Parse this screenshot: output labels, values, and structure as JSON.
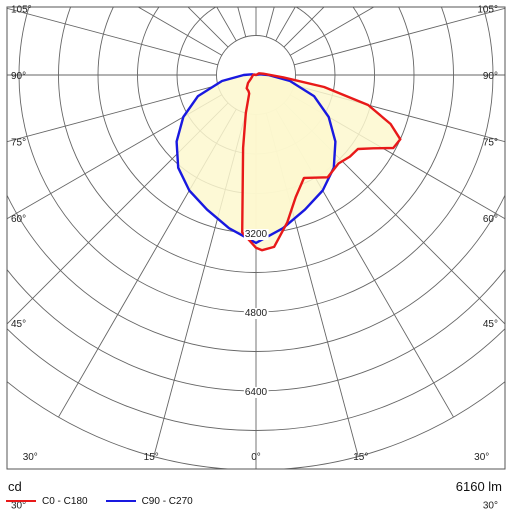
{
  "chart_data": {
    "type": "polar",
    "title": "",
    "unit_label": "cd",
    "flux_label": "6160 lm",
    "radial_ticks": [
      "3200",
      "4800",
      "6400"
    ],
    "radial_tick_values": [
      3200,
      4800,
      6400
    ],
    "radial_circles": [
      800,
      1600,
      2400,
      3200,
      4000,
      4800,
      5600,
      6400,
      7200,
      8000
    ],
    "radial_max": 8000,
    "angle_spokes": [
      0,
      15,
      30,
      45,
      60,
      75,
      90,
      105,
      120,
      135,
      150,
      165,
      180
    ],
    "angle_labels_right": [
      {
        "angle": 105,
        "text": "105°"
      },
      {
        "angle": 90,
        "text": "90°"
      },
      {
        "angle": 75,
        "text": "75°"
      },
      {
        "angle": 60,
        "text": "60°"
      },
      {
        "angle": 45,
        "text": "45°"
      },
      {
        "angle": 30,
        "text": "30°"
      }
    ],
    "angle_labels_left": [
      {
        "angle": 105,
        "text": "105°"
      },
      {
        "angle": 90,
        "text": "90°"
      },
      {
        "angle": 75,
        "text": "75°"
      },
      {
        "angle": 60,
        "text": "60°"
      },
      {
        "angle": 45,
        "text": "45°"
      },
      {
        "angle": 30,
        "text": "30°"
      }
    ],
    "angle_labels_bottom": [
      {
        "angle": 30,
        "side": "left",
        "text": "30°"
      },
      {
        "angle": 15,
        "side": "left",
        "text": "15°"
      },
      {
        "angle": 0,
        "side": "center",
        "text": "0°"
      },
      {
        "angle": 15,
        "side": "right",
        "text": "15°"
      },
      {
        "angle": 30,
        "side": "right",
        "text": "30°"
      }
    ],
    "series": [
      {
        "name": "C0 - C180",
        "color": "#e81919",
        "fill": "#fdf8cf",
        "points": [
          {
            "side": "left",
            "angle": 0,
            "value": 3500
          },
          {
            "side": "left",
            "angle": 5,
            "value": 3200
          },
          {
            "side": "left",
            "angle": 10,
            "value": 1500
          },
          {
            "side": "left",
            "angle": 15,
            "value": 800
          },
          {
            "side": "left",
            "angle": 20,
            "value": 400
          },
          {
            "side": "left",
            "angle": 25,
            "value": 360
          },
          {
            "side": "left",
            "angle": 35,
            "value": 330
          },
          {
            "side": "left",
            "angle": 45,
            "value": 230
          },
          {
            "side": "left",
            "angle": 55,
            "value": 120
          },
          {
            "side": "left",
            "angle": 70,
            "value": 80
          },
          {
            "side": "left",
            "angle": 90,
            "value": 60
          },
          {
            "side": "left",
            "angle": 110,
            "value": 30
          },
          {
            "side": "left",
            "angle": 180,
            "value": 0
          },
          {
            "side": "right",
            "angle": 120,
            "value": 70
          },
          {
            "side": "right",
            "angle": 100,
            "value": 150
          },
          {
            "side": "right",
            "angle": 85,
            "value": 560
          },
          {
            "side": "right",
            "angle": 80,
            "value": 1400
          },
          {
            "side": "right",
            "angle": 75,
            "value": 2350
          },
          {
            "side": "right",
            "angle": 70,
            "value": 2900
          },
          {
            "side": "right",
            "angle": 66,
            "value": 3200
          },
          {
            "side": "right",
            "angle": 62,
            "value": 3150
          },
          {
            "side": "right",
            "angle": 58,
            "value": 2800
          },
          {
            "side": "right",
            "angle": 54,
            "value": 2550
          },
          {
            "side": "right",
            "angle": 49,
            "value": 2520
          },
          {
            "side": "right",
            "angle": 43,
            "value": 2450
          },
          {
            "side": "right",
            "angle": 35,
            "value": 2530
          },
          {
            "side": "right",
            "angle": 25,
            "value": 2300
          },
          {
            "side": "right",
            "angle": 18,
            "value": 2600
          },
          {
            "side": "right",
            "angle": 12,
            "value": 3050
          },
          {
            "side": "right",
            "angle": 6,
            "value": 3500
          },
          {
            "side": "right",
            "angle": 2,
            "value": 3550
          }
        ]
      },
      {
        "name": "C90 - C270",
        "color": "#1919e0",
        "fill": "#fdf8cf",
        "points": [
          {
            "side": "right",
            "angle": 0,
            "value": 3400
          },
          {
            "side": "right",
            "angle": 10,
            "value": 3150
          },
          {
            "side": "right",
            "angle": 20,
            "value": 2900
          },
          {
            "side": "right",
            "angle": 30,
            "value": 2700
          },
          {
            "side": "right",
            "angle": 40,
            "value": 2450
          },
          {
            "side": "right",
            "angle": 50,
            "value": 2100
          },
          {
            "side": "right",
            "angle": 60,
            "value": 1700
          },
          {
            "side": "right",
            "angle": 70,
            "value": 1250
          },
          {
            "side": "right",
            "angle": 80,
            "value": 700
          },
          {
            "side": "right",
            "angle": 90,
            "value": 250
          },
          {
            "side": "right",
            "angle": 100,
            "value": 80
          },
          {
            "side": "right",
            "angle": 180,
            "value": 0
          },
          {
            "side": "left",
            "angle": 100,
            "value": 80
          },
          {
            "side": "left",
            "angle": 90,
            "value": 250
          },
          {
            "side": "left",
            "angle": 80,
            "value": 700
          },
          {
            "side": "left",
            "angle": 70,
            "value": 1250
          },
          {
            "side": "left",
            "angle": 60,
            "value": 1700
          },
          {
            "side": "left",
            "angle": 50,
            "value": 2100
          },
          {
            "side": "left",
            "angle": 40,
            "value": 2450
          },
          {
            "side": "left",
            "angle": 30,
            "value": 2700
          },
          {
            "side": "left",
            "angle": 20,
            "value": 2900
          },
          {
            "side": "left",
            "angle": 10,
            "value": 3150
          },
          {
            "side": "left",
            "angle": 0,
            "value": 3400
          }
        ]
      }
    ]
  }
}
